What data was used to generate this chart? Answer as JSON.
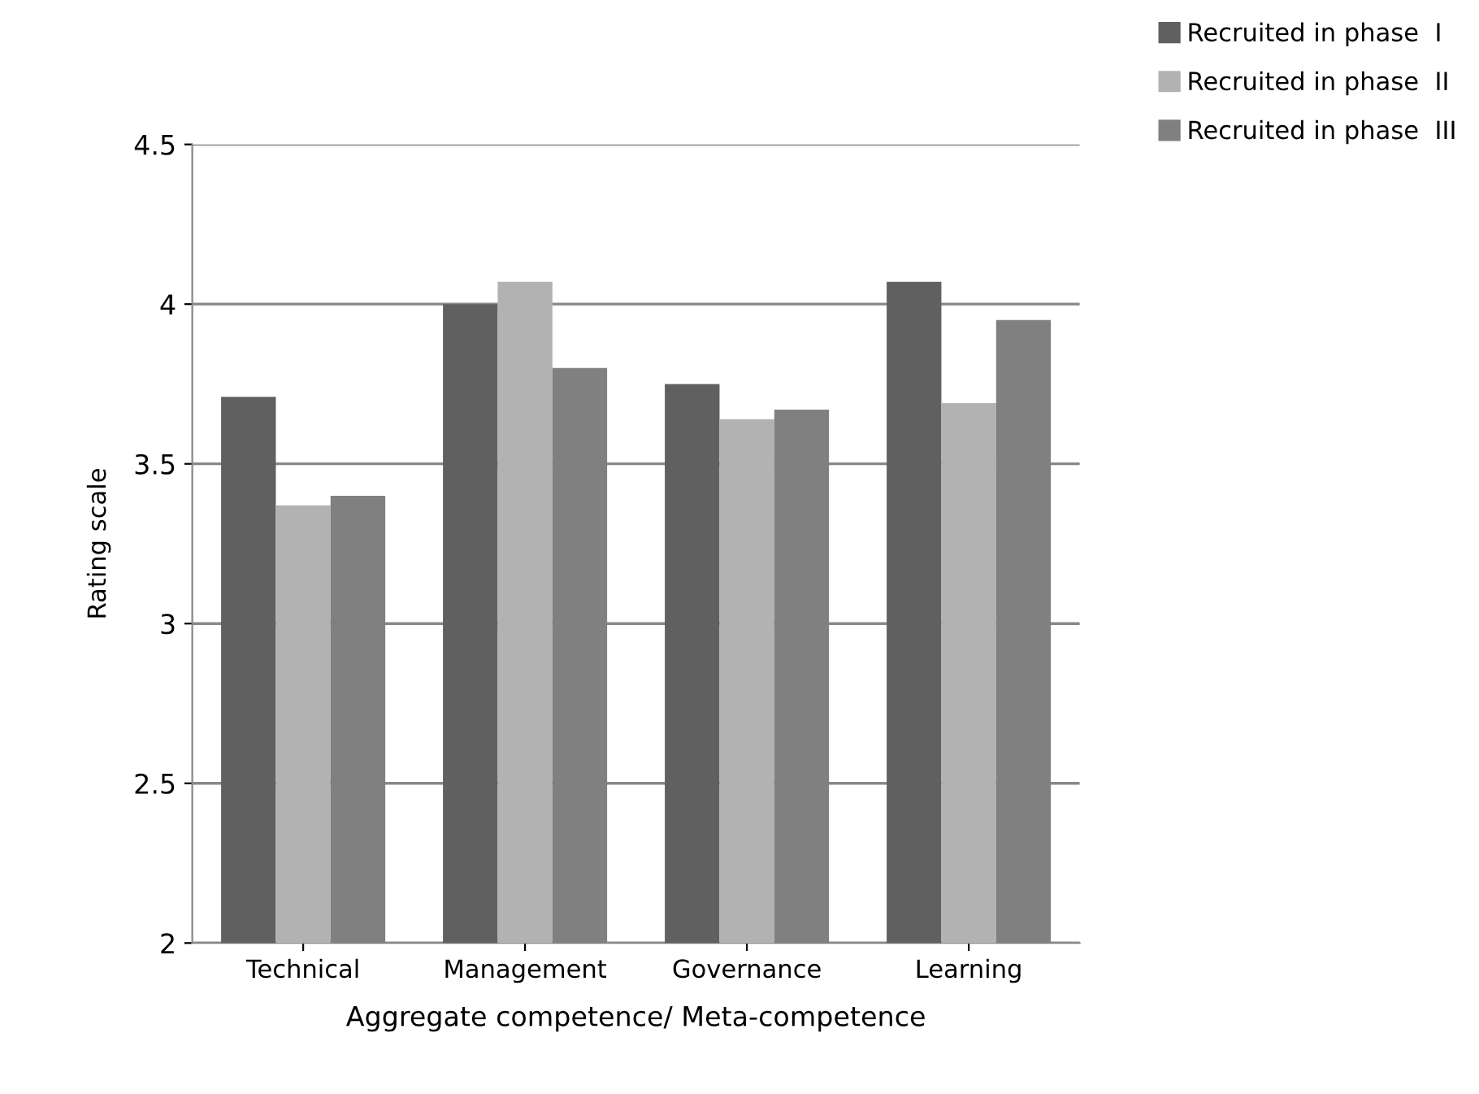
{
  "chart_data": {
    "type": "bar",
    "xlabel": "Aggregate competence/ Meta-competence",
    "ylabel": "Rating scale",
    "categories": [
      "Technical",
      "Management",
      "Governance",
      "Learning"
    ],
    "series": [
      {
        "name": "Recruited in phase  I",
        "color": "#606060",
        "values": [
          3.71,
          4.0,
          3.75,
          4.07
        ]
      },
      {
        "name": "Recruited in phase  II",
        "color": "#b2b2b2",
        "values": [
          3.37,
          4.07,
          3.64,
          3.69
        ]
      },
      {
        "name": "Recruited in phase  III",
        "color": "#808080",
        "values": [
          3.4,
          3.8,
          3.67,
          3.95
        ]
      }
    ],
    "ylim": [
      2,
      4.5
    ],
    "yticks": [
      2,
      2.5,
      3,
      3.5,
      4,
      4.5
    ],
    "grid": "y",
    "legend": "top right"
  }
}
